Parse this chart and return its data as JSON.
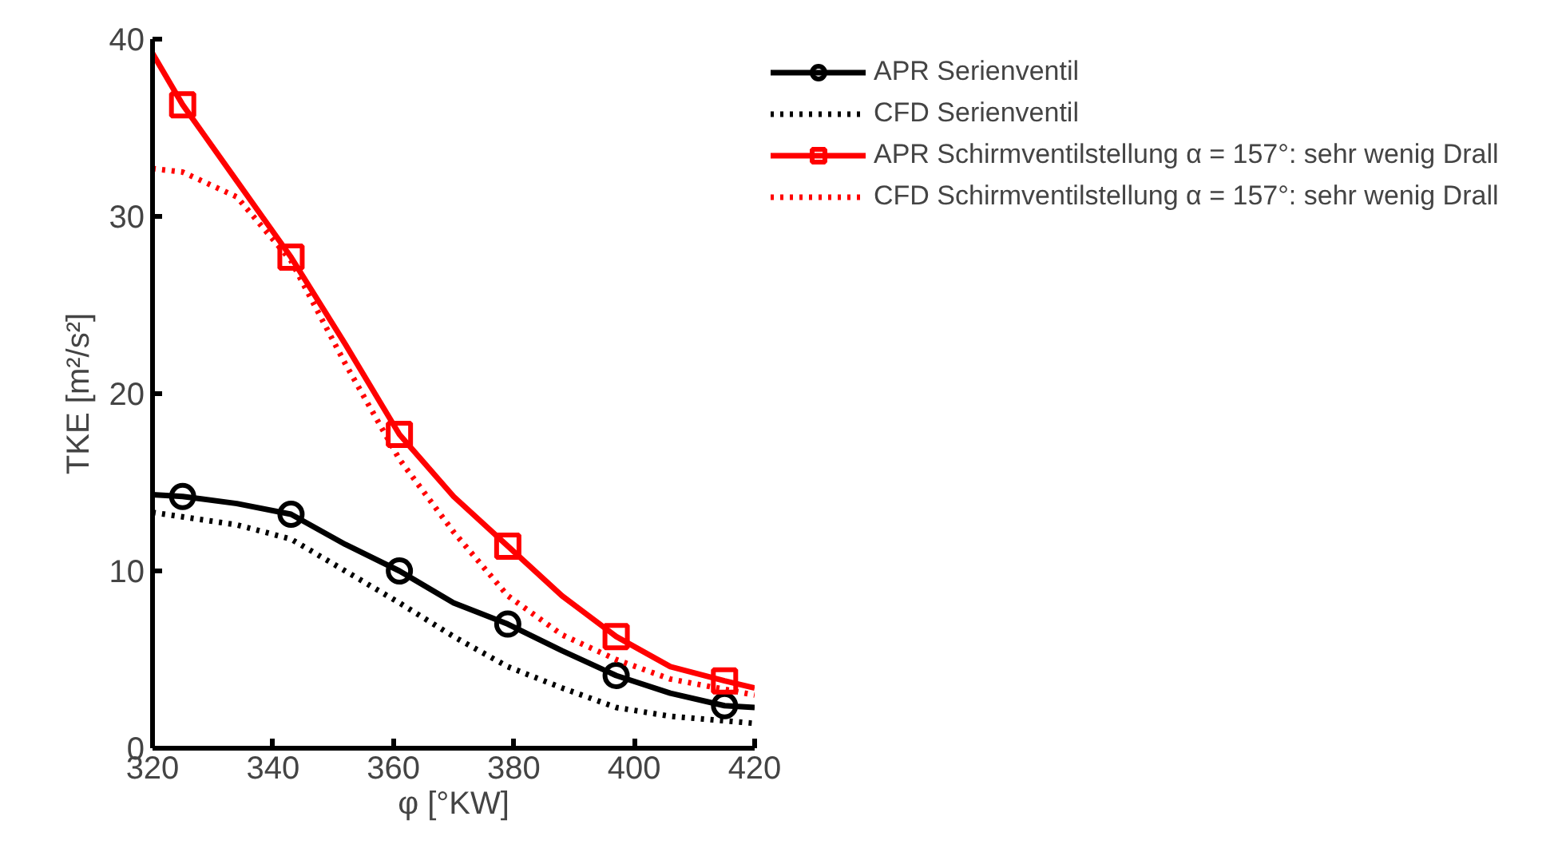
{
  "chart_data": {
    "type": "line",
    "xlabel": "φ [°KW]",
    "ylabel": "TKE [m²/s²]",
    "xlim": [
      320,
      420
    ],
    "xticks": [
      320,
      340,
      360,
      380,
      400,
      420
    ],
    "ylim": [
      0,
      40
    ],
    "yticks": [
      0,
      10,
      20,
      30,
      40
    ],
    "grid": false,
    "legend": "top right",
    "series": [
      {
        "name": "APR Serienventil",
        "color": "#000000",
        "line_style": "solid",
        "marker": "none",
        "x": [
          320,
          325,
          334,
          343,
          352,
          361,
          370,
          379,
          388,
          397,
          406,
          415,
          420
        ],
        "values": [
          14.3,
          14.2,
          13.8,
          13.2,
          11.5,
          10.0,
          8.2,
          7.0,
          5.5,
          4.1,
          3.1,
          2.4,
          2.3
        ]
      },
      {
        "type": "scatter",
        "color": "#000000",
        "marker": "circle",
        "x": [
          325,
          343,
          361,
          379,
          397,
          415
        ],
        "values": [
          14.2,
          13.2,
          10.0,
          7.0,
          4.1,
          2.4
        ]
      },
      {
        "name": "CFD Serienventil",
        "color": "#000000",
        "line_style": "dotted",
        "marker": "none",
        "x": [
          320,
          334,
          343,
          352,
          361,
          370,
          379,
          388,
          397,
          406,
          420
        ],
        "values": [
          13.3,
          12.6,
          11.8,
          10.0,
          8.2,
          6.3,
          4.6,
          3.4,
          2.3,
          1.8,
          1.4
        ]
      },
      {
        "name": "APR Schirmventilstellung α = 157°: sehr wenig Drall",
        "color": "#ff0000",
        "line_style": "solid",
        "marker": "none",
        "x": [
          320,
          325,
          334,
          343,
          352,
          361,
          370,
          379,
          388,
          397,
          406,
          415,
          420
        ],
        "values": [
          39.2,
          36.3,
          32.0,
          27.7,
          22.8,
          17.7,
          14.2,
          11.4,
          8.6,
          6.3,
          4.6,
          3.8,
          3.4
        ]
      },
      {
        "type": "scatter",
        "color": "#ff0000",
        "marker": "square",
        "x": [
          325,
          343,
          361,
          379,
          397,
          415
        ],
        "values": [
          36.3,
          27.7,
          17.7,
          11.4,
          6.3,
          3.8
        ]
      },
      {
        "name": "CFD Schirmventilstellung α = 157°: sehr wenig Drall",
        "color": "#ff0000",
        "line_style": "dotted",
        "marker": "none",
        "x": [
          320,
          325,
          334,
          343,
          352,
          361,
          370,
          379,
          388,
          397,
          406,
          420
        ],
        "values": [
          32.7,
          32.5,
          31.1,
          27.5,
          21.7,
          16.3,
          12.2,
          8.6,
          6.4,
          5.0,
          3.9,
          3.0
        ]
      }
    ]
  }
}
